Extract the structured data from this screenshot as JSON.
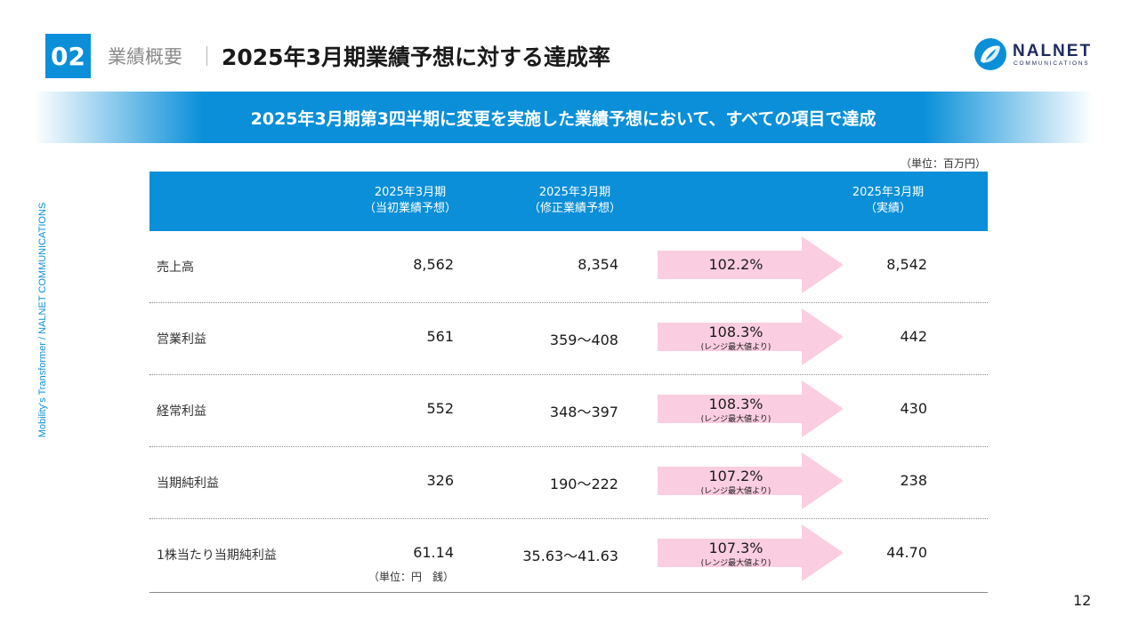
{
  "header": {
    "section_number": "02",
    "section_label": "業績概要",
    "title": "2025年3月期業績予想に対する達成率"
  },
  "logo": {
    "name": "NALNET",
    "sub": "COMMUNICATIONS"
  },
  "banner": {
    "text": "2025年3月期第3四半期に変更を実施した業績予想において、すべての項目で達成"
  },
  "side_text": "Mobility's Transformer / NALNET COMMUNICATIONS",
  "unit": "（単位：百万円）",
  "table": {
    "headers": [
      {
        "line1": "2025年3月期",
        "line2": "（当初業績予想）"
      },
      {
        "line1": "2025年3月期",
        "line2": "（修正業績予想）"
      },
      {
        "line1": "2025年3月期",
        "line2": "（実績）"
      }
    ],
    "rows": [
      {
        "label": "売上高",
        "initial": "8,562",
        "revised": "8,354",
        "rate": "102.2%",
        "note": "",
        "actual": "8,542"
      },
      {
        "label": "営業利益",
        "initial": "561",
        "revised": "359〜408",
        "rate": "108.3%",
        "note": "(レンジ最大値より)",
        "actual": "442"
      },
      {
        "label": "経常利益",
        "initial": "552",
        "revised": "348〜397",
        "rate": "108.3%",
        "note": "(レンジ最大値より)",
        "actual": "430"
      },
      {
        "label": "当期純利益",
        "initial": "326",
        "revised": "190〜222",
        "rate": "107.2%",
        "note": "(レンジ最大値より)",
        "actual": "238"
      },
      {
        "label": "1株当たり当期純利益",
        "initial": "61.14",
        "revised": "35.63〜41.63",
        "rate": "107.3%",
        "note": "(レンジ最大値より)",
        "actual": "44.70",
        "unit": "（単位：円　銭）"
      }
    ]
  },
  "colors": {
    "accent": "#0a8fd8",
    "arrow": "#fbcde0",
    "logo_navy": "#1d2a5e"
  },
  "page_number": "12"
}
